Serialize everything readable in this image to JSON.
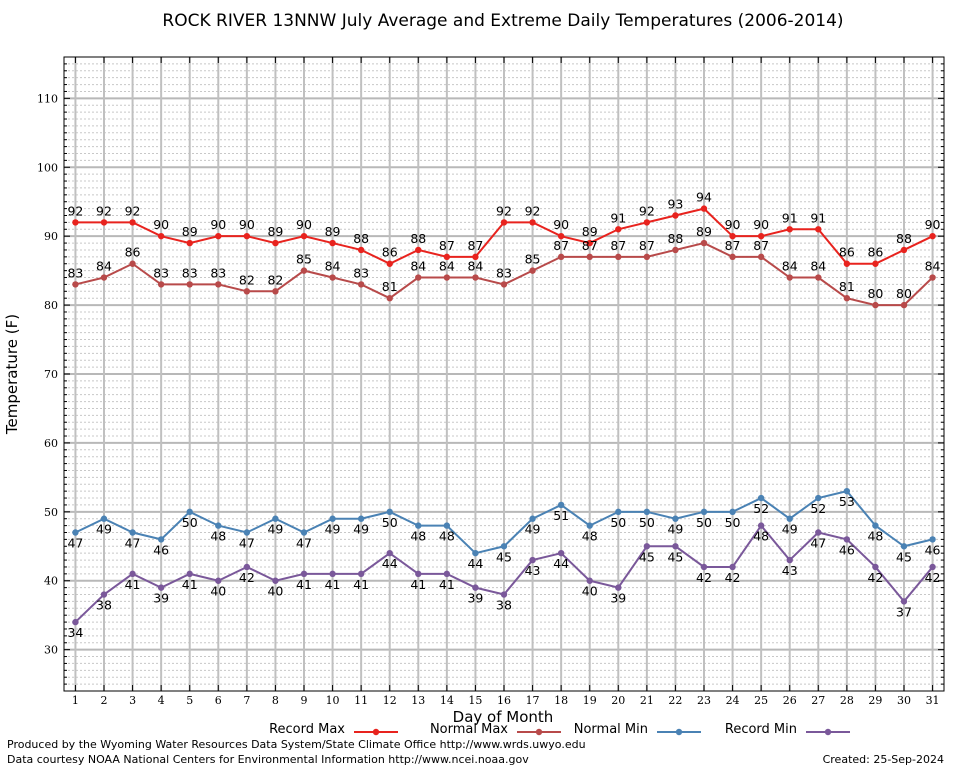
{
  "chart_data": {
    "type": "line",
    "title": "ROCK RIVER 13NNW July Average and Extreme Daily Temperatures (2006-2014)",
    "xlabel": "Day of Month",
    "ylabel": "Temperature (F)",
    "x": [
      1,
      2,
      3,
      4,
      5,
      6,
      7,
      8,
      9,
      10,
      11,
      12,
      13,
      14,
      15,
      16,
      17,
      18,
      19,
      20,
      21,
      22,
      23,
      24,
      25,
      26,
      27,
      28,
      29,
      30,
      31
    ],
    "xlim": [
      0.6,
      31.4
    ],
    "ylim": [
      24,
      116
    ],
    "yticks": [
      30,
      40,
      50,
      60,
      70,
      80,
      90,
      100,
      110
    ],
    "grid": true,
    "legend_placement": "bottom",
    "series": [
      {
        "name": "Record Max",
        "color": "#e8231e",
        "values": [
          92,
          92,
          92,
          90,
          89,
          90,
          90,
          89,
          90,
          89,
          88,
          86,
          88,
          87,
          87,
          92,
          92,
          90,
          89,
          91,
          92,
          93,
          94,
          90,
          90,
          91,
          91,
          86,
          86,
          88,
          90
        ]
      },
      {
        "name": "Normal Max",
        "color": "#b84a4a",
        "values": [
          83,
          84,
          86,
          83,
          83,
          83,
          82,
          82,
          85,
          84,
          83,
          81,
          84,
          84,
          84,
          83,
          85,
          87,
          87,
          87,
          87,
          88,
          89,
          87,
          87,
          84,
          84,
          81,
          80,
          80,
          84
        ]
      },
      {
        "name": "Normal Min",
        "color": "#4a82b4",
        "values": [
          47,
          49,
          47,
          46,
          50,
          48,
          47,
          49,
          47,
          49,
          49,
          50,
          48,
          48,
          44,
          45,
          49,
          51,
          48,
          50,
          50,
          49,
          50,
          50,
          52,
          49,
          52,
          53,
          48,
          45,
          46
        ]
      },
      {
        "name": "Record Min",
        "color": "#7a589a",
        "values": [
          34,
          38,
          41,
          39,
          41,
          40,
          42,
          40,
          41,
          41,
          41,
          44,
          41,
          41,
          39,
          38,
          43,
          44,
          40,
          39,
          45,
          45,
          42,
          42,
          48,
          43,
          47,
          46,
          42,
          37,
          42
        ]
      }
    ]
  },
  "footer": {
    "produced_by": "Produced by the Wyoming Water Resources Data System/State Climate Office http://www.wrds.uwyo.edu",
    "courtesy": "Data courtesy NOAA National Centers for Environmental Information http://www.ncei.noaa.gov",
    "created": "Created:  25-Sep-2024"
  }
}
